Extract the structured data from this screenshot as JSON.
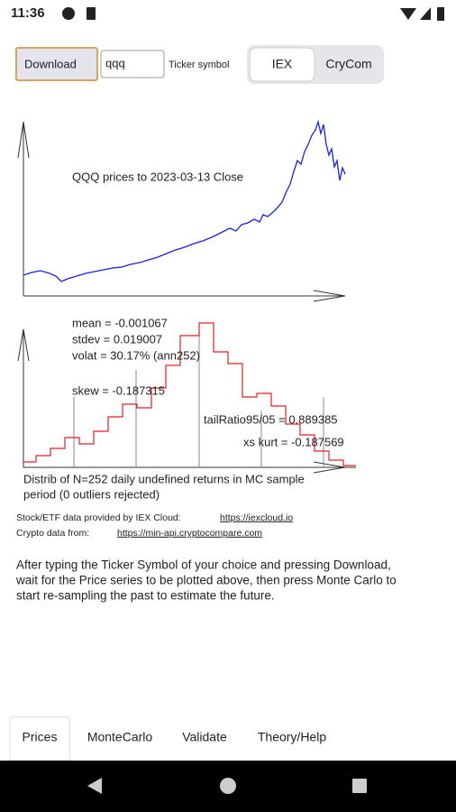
{
  "status": {
    "time": "11:36"
  },
  "toolbar": {
    "button": "Download",
    "ticker": "qqq",
    "ticker_label": "Ticker symbol",
    "sources": [
      "IEX",
      "CryCom"
    ]
  },
  "price_chart": {
    "title": "QQQ prices to 2023-03-13 Close"
  },
  "histogram": {
    "stats": [
      "mean = -0.001067",
      "stdev = 0.019007",
      "volat = 30.17% (ann252)",
      "skew = -0.187315",
      "tailRatio95/05 = 0.889385",
      "xs kurt = -0.187569"
    ],
    "caption": [
      "Distrib of N=252 daily undefined returns in MC sample",
      "period (0 outliers rejected)"
    ]
  },
  "credits": [
    {
      "text": "Stock/ETF data provided by IEX Cloud:",
      "link": "https://iexcloud.io"
    },
    {
      "text": "Crypto data from:",
      "link": "https://min-api.cryptocompare.com"
    }
  ],
  "instructions": [
    "After typing the Ticker Symbol of your choice and pressing Download,",
    "wait for the Price series to be plotted above, then press Monte Carlo to",
    "start re-sampling the past to estimate the future."
  ],
  "tabs": [
    "Prices",
    "MonteCarlo",
    "Validate",
    "Theory/Help"
  ]
}
